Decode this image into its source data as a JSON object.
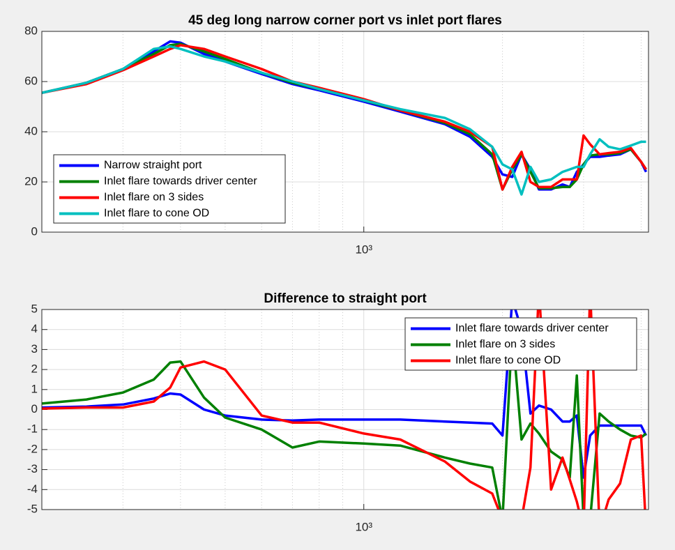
{
  "chart_data": [
    {
      "type": "line",
      "title": "45 deg long narrow corner port vs inlet port flares",
      "log_x": true,
      "grid": true,
      "legend": "southwest",
      "x": [
        200,
        250,
        300,
        350,
        380,
        400,
        450,
        500,
        600,
        700,
        800,
        1000,
        1200,
        1500,
        1700,
        1900,
        2000,
        2100,
        2200,
        2300,
        2400,
        2550,
        2700,
        2800,
        2900,
        3000,
        3100,
        3250,
        3400,
        3600,
        3800,
        4000,
        4100
      ],
      "xlim": [
        200,
        4150
      ],
      "xticks": [
        {
          "value": 1000,
          "label": "10³"
        }
      ],
      "xminor": [
        300,
        400,
        500,
        600,
        700,
        800,
        900,
        2000,
        3000,
        4000
      ],
      "ylim": [
        0,
        80
      ],
      "yticks": [
        0,
        20,
        40,
        60,
        80
      ],
      "series": [
        {
          "name": "Narrow straight port",
          "color": "#0000ff",
          "values": [
            55.5,
            59.5,
            65,
            72,
            76,
            75.5,
            71,
            68,
            63,
            59,
            56.5,
            52,
            48,
            43,
            38,
            30,
            23,
            22,
            31,
            25,
            17,
            17,
            19,
            18,
            24,
            27,
            30,
            30,
            30.5,
            31,
            33,
            28,
            24
          ]
        },
        {
          "name": "Inlet flare towards driver center",
          "color": "#008000",
          "values": [
            55.5,
            59.5,
            65,
            71,
            74.5,
            75,
            72,
            69,
            63.5,
            59.5,
            57,
            52.5,
            48.5,
            43.5,
            39,
            31,
            17,
            25,
            31,
            24,
            17.5,
            17.5,
            18,
            18,
            21,
            27,
            30.5,
            31,
            31,
            31.5,
            33,
            28,
            25
          ]
        },
        {
          "name": "Inlet flare on 3 sides",
          "color": "#ff0000",
          "values": [
            55.5,
            59,
            64.5,
            70,
            73,
            74.5,
            73,
            70,
            65,
            60,
            57.5,
            53,
            48.5,
            44,
            40,
            34,
            17,
            26,
            32,
            20,
            18,
            18,
            21,
            21,
            21,
            38.5,
            35,
            31,
            31.5,
            32,
            33.5,
            28,
            25
          ]
        },
        {
          "name": "Inlet flare to cone OD",
          "color": "#00bfbf",
          "values": [
            55.5,
            59.5,
            65,
            73,
            74,
            73,
            70,
            68,
            63.5,
            60,
            57,
            52.5,
            49,
            45.5,
            41,
            34,
            27,
            25,
            15,
            26,
            20,
            21,
            24,
            25,
            26,
            26,
            31,
            37,
            34,
            33,
            34.5,
            36,
            36
          ]
        }
      ]
    },
    {
      "type": "line",
      "title": "Difference to straight port",
      "log_x": true,
      "grid": true,
      "legend": "northeast",
      "x": [
        200,
        250,
        300,
        350,
        380,
        400,
        450,
        500,
        600,
        700,
        800,
        1000,
        1200,
        1500,
        1700,
        1900,
        2000,
        2100,
        2200,
        2300,
        2400,
        2550,
        2700,
        2800,
        2900,
        3000,
        3100,
        3250,
        3400,
        3600,
        3800,
        4000,
        4100
      ],
      "xlim": [
        200,
        4150
      ],
      "xticks": [
        {
          "value": 1000,
          "label": "10³"
        }
      ],
      "xminor": [
        300,
        400,
        500,
        600,
        700,
        800,
        900,
        2000,
        3000,
        4000
      ],
      "ylim": [
        -5,
        5
      ],
      "yticks": [
        -5,
        -4,
        -3,
        -2,
        -1,
        0,
        1,
        2,
        3,
        4,
        5
      ],
      "series": [
        {
          "name": "Inlet flare towards driver center",
          "color": "#0000ff",
          "values": [
            0.1,
            0.15,
            0.25,
            0.55,
            0.8,
            0.75,
            0,
            -0.3,
            -0.5,
            -0.55,
            -0.5,
            -0.5,
            -0.5,
            -0.6,
            -0.65,
            -0.7,
            -1.3,
            5.5,
            4,
            -0.2,
            0.2,
            0,
            -0.6,
            -0.6,
            -0.3,
            -3.4,
            -1.3,
            -0.8,
            -0.8,
            -0.8,
            -0.8,
            -0.8,
            -1.3
          ]
        },
        {
          "name": "Inlet flare on 3 sides",
          "color": "#008000",
          "values": [
            0.3,
            0.5,
            0.85,
            1.5,
            2.35,
            2.4,
            0.6,
            -0.4,
            -1.0,
            -1.9,
            -1.6,
            -1.7,
            -1.8,
            -2.4,
            -2.7,
            -2.9,
            -5.5,
            4,
            -1.5,
            -0.7,
            -1.2,
            -2.1,
            -2.5,
            -3.4,
            1.7,
            -5.5,
            -5.5,
            -0.2,
            -0.6,
            -1,
            -1.3,
            -1.4,
            -1.2
          ]
        },
        {
          "name": "Inlet flare to cone OD",
          "color": "#ff0000",
          "values": [
            0.05,
            0.1,
            0.1,
            0.4,
            1.1,
            2.1,
            2.4,
            2.0,
            -0.3,
            -0.65,
            -0.65,
            -1.2,
            -1.5,
            -2.6,
            -3.6,
            -4.2,
            -5.5,
            -5.5,
            -5.5,
            -2.9,
            6,
            -4,
            -2.4,
            -3.5,
            -4.6,
            -6,
            6,
            -6,
            -4.5,
            -3.7,
            -1.5,
            -1.3,
            -6
          ]
        }
      ]
    }
  ]
}
